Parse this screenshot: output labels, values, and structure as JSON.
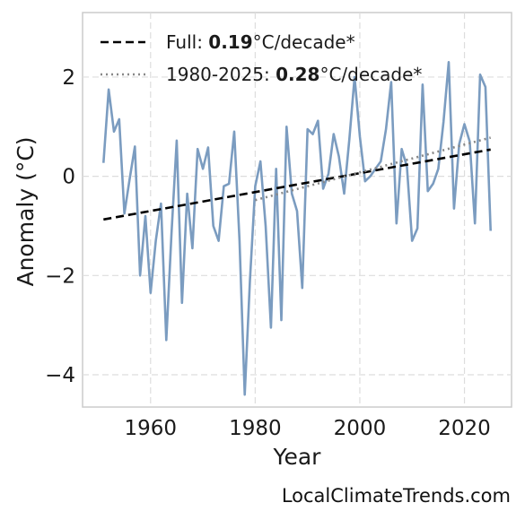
{
  "chart_data": {
    "type": "line",
    "title": "",
    "xlabel": "Year",
    "ylabel": "Anomaly (°C)",
    "xlim": [
      1947,
      2029
    ],
    "ylim": [
      -4.65,
      3.3
    ],
    "xticks": [
      1960,
      1980,
      2000,
      2020
    ],
    "yticks": [
      2,
      0,
      -2,
      -4
    ],
    "ytick_labels": [
      "2",
      "0",
      "−2",
      "−4"
    ],
    "grid": true,
    "legend_position": "top-left",
    "series": [
      {
        "style": "solid",
        "color": "#7b9cc0",
        "x": [
          1951,
          1952,
          1953,
          1954,
          1955,
          1956,
          1957,
          1958,
          1959,
          1960,
          1961,
          1962,
          1963,
          1964,
          1965,
          1966,
          1967,
          1968,
          1969,
          1970,
          1971,
          1972,
          1973,
          1974,
          1975,
          1976,
          1977,
          1978,
          1979,
          1980,
          1981,
          1982,
          1983,
          1984,
          1985,
          1986,
          1987,
          1988,
          1989,
          1990,
          1991,
          1992,
          1993,
          1994,
          1995,
          1996,
          1997,
          1998,
          1999,
          2000,
          2001,
          2002,
          2003,
          2004,
          2005,
          2006,
          2007,
          2008,
          2009,
          2010,
          2011,
          2012,
          2013,
          2014,
          2015,
          2016,
          2017,
          2018,
          2019,
          2020,
          2021,
          2022,
          2023,
          2024,
          2025
        ],
        "values": [
          0.27,
          1.75,
          0.9,
          1.15,
          -0.75,
          -0.05,
          0.6,
          -2.0,
          -0.8,
          -2.35,
          -1.3,
          -0.55,
          -3.3,
          -1.15,
          0.72,
          -2.55,
          -0.35,
          -1.45,
          0.55,
          0.15,
          0.58,
          -1.0,
          -1.3,
          -0.2,
          -0.15,
          0.9,
          -1.3,
          -4.4,
          -2.1,
          -0.2,
          0.3,
          -1.0,
          -3.05,
          0.15,
          -2.9,
          1.0,
          -0.35,
          -0.7,
          -2.25,
          0.95,
          0.85,
          1.12,
          -0.25,
          0.05,
          0.85,
          0.4,
          -0.35,
          0.75,
          2.0,
          0.8,
          -0.1,
          0.0,
          0.15,
          0.3,
          0.95,
          1.9,
          -0.95,
          0.55,
          0.2,
          -1.3,
          -1.05,
          1.85,
          -0.3,
          -0.15,
          0.15,
          1.1,
          2.3,
          -0.65,
          0.65,
          1.05,
          0.7,
          -0.95,
          2.05,
          1.8,
          -1.1
        ]
      },
      {
        "style": "dashed",
        "color": "#000000",
        "x": [
          1951,
          2025
        ],
        "values": [
          -0.87,
          0.54
        ]
      },
      {
        "style": "dotted",
        "color": "#888888",
        "x": [
          1980,
          2025
        ],
        "values": [
          -0.48,
          0.78
        ]
      }
    ],
    "legend": [
      {
        "style": "dashed",
        "color": "#000000",
        "prefix": "Full: ",
        "value": "0.19",
        "suffix": "°C/decade*"
      },
      {
        "style": "dotted",
        "color": "#888888",
        "prefix": "1980-2025: ",
        "value": "0.28",
        "suffix": "°C/decade*"
      }
    ],
    "footer": "LocalClimateTrends.com"
  }
}
